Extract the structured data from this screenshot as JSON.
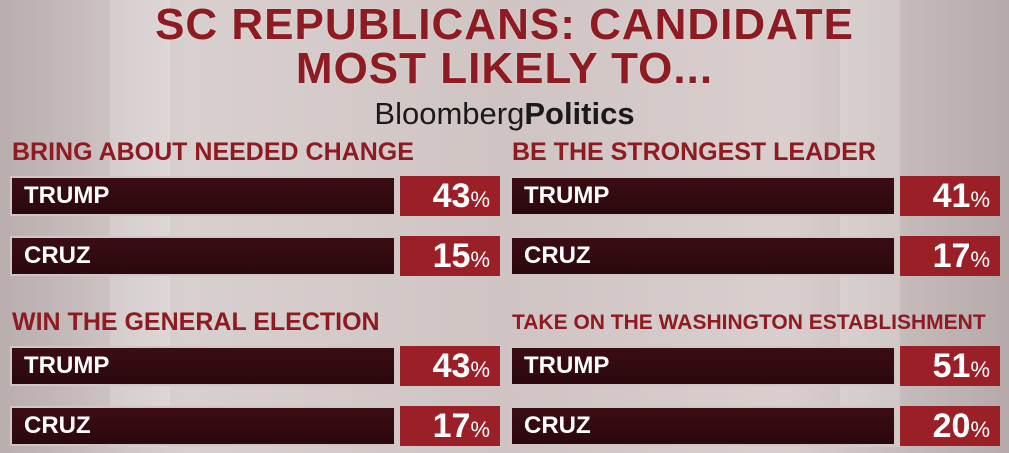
{
  "header": {
    "title_line1": "SC REPUBLICANS: CANDIDATE",
    "title_line2": "MOST LIKELY TO...",
    "brand_part1": "Bloomberg",
    "brand_part2": "Politics"
  },
  "colors": {
    "accent": "#8e1b22",
    "bar": "#2a080d",
    "pct_box": "#9a1f27"
  },
  "chart_data": {
    "type": "table",
    "unit": "%",
    "panels": [
      {
        "heading": "BRING ABOUT NEEDED CHANGE",
        "rows": [
          {
            "candidate": "TRUMP",
            "value": 43
          },
          {
            "candidate": "CRUZ",
            "value": 15
          }
        ]
      },
      {
        "heading": "BE THE STRONGEST LEADER",
        "rows": [
          {
            "candidate": "TRUMP",
            "value": 41
          },
          {
            "candidate": "CRUZ",
            "value": 17
          }
        ]
      },
      {
        "heading": "WIN THE GENERAL ELECTION",
        "rows": [
          {
            "candidate": "TRUMP",
            "value": 43
          },
          {
            "candidate": "CRUZ",
            "value": 17
          }
        ]
      },
      {
        "heading": "TAKE ON THE WASHINGTON ESTABLISHMENT",
        "rows": [
          {
            "candidate": "TRUMP",
            "value": 51
          },
          {
            "candidate": "CRUZ",
            "value": 20
          }
        ]
      }
    ]
  }
}
